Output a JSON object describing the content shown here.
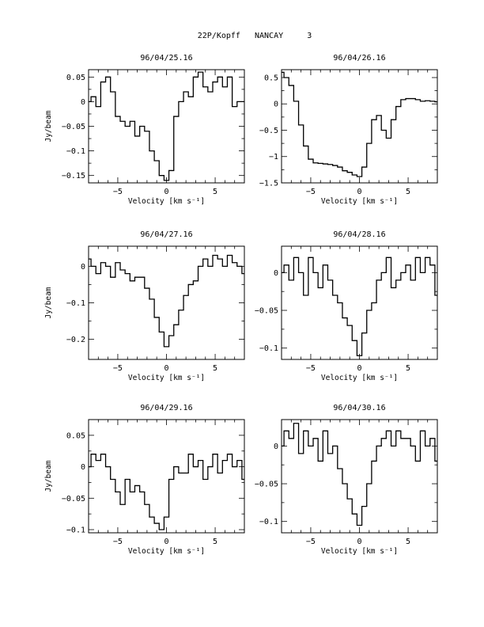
{
  "header": {
    "title": "22P/Kopff   NANCAY     3"
  },
  "chart_data": [
    {
      "type": "line",
      "title": "96/04/25.16",
      "xlabel": "Velocity [km s⁻¹]",
      "ylabel": "Jy/beam",
      "xlim": [
        -8,
        8
      ],
      "ylim": [
        -0.165,
        0.065
      ],
      "xticks": [
        -5,
        0,
        5
      ],
      "yticks": [
        0.05,
        0,
        -0.05,
        -0.1,
        -0.15
      ],
      "ytick_labels": [
        "0.05",
        "0",
        "−0.05",
        "−0.1",
        "−0.15"
      ],
      "x": [
        -8,
        -7.5,
        -7,
        -6.5,
        -6,
        -5.5,
        -5,
        -4.5,
        -4,
        -3.5,
        -3,
        -2.5,
        -2,
        -1.5,
        -1,
        -0.5,
        0,
        0.5,
        1,
        1.5,
        2,
        2.5,
        3,
        3.5,
        4,
        4.5,
        5,
        5.5,
        6,
        6.5,
        7,
        7.5,
        8
      ],
      "y": [
        0.0,
        0.01,
        -0.01,
        0.04,
        0.05,
        0.02,
        -0.03,
        -0.04,
        -0.05,
        -0.04,
        -0.07,
        -0.05,
        -0.06,
        -0.1,
        -0.12,
        -0.15,
        -0.16,
        -0.14,
        -0.03,
        0.0,
        0.02,
        0.01,
        0.05,
        0.06,
        0.03,
        0.02,
        0.04,
        0.05,
        0.03,
        0.05,
        -0.01,
        0.0,
        0.0
      ]
    },
    {
      "type": "line",
      "title": "96/04/26.16",
      "xlabel": "Velocity [km s⁻¹]",
      "ylabel": "",
      "xlim": [
        -8,
        8
      ],
      "ylim": [
        -1.5,
        0.65
      ],
      "xticks": [
        -5,
        0,
        5
      ],
      "yticks": [
        0.5,
        0,
        -0.5,
        -1,
        -1.5
      ],
      "ytick_labels": [
        "0.5",
        "0",
        "−0.5",
        "−1",
        "−1.5"
      ],
      "x": [
        -8,
        -7.5,
        -7,
        -6.5,
        -6,
        -5.5,
        -5,
        -4.5,
        -4,
        -3.5,
        -3,
        -2.5,
        -2,
        -1.5,
        -1,
        -0.5,
        0,
        0.5,
        1,
        1.5,
        2,
        2.5,
        3,
        3.5,
        4,
        4.5,
        5,
        5.5,
        6,
        6.5,
        7,
        7.5,
        8
      ],
      "y": [
        0.6,
        0.5,
        0.35,
        0.05,
        -0.4,
        -0.8,
        -1.05,
        -1.12,
        -1.13,
        -1.14,
        -1.15,
        -1.17,
        -1.2,
        -1.27,
        -1.3,
        -1.35,
        -1.38,
        -1.2,
        -0.75,
        -0.3,
        -0.22,
        -0.5,
        -0.65,
        -0.3,
        -0.05,
        0.08,
        0.1,
        0.1,
        0.08,
        0.05,
        0.06,
        0.05,
        0.04
      ]
    },
    {
      "type": "line",
      "title": "96/04/27.16",
      "xlabel": "Velocity [km s⁻¹]",
      "ylabel": "Jy/beam",
      "xlim": [
        -8,
        8
      ],
      "ylim": [
        -0.255,
        0.055
      ],
      "xticks": [
        -5,
        0,
        5
      ],
      "yticks": [
        0,
        -0.1,
        -0.2
      ],
      "ytick_labels": [
        "0",
        "−0.1",
        "−0.2"
      ],
      "x": [
        -8,
        -7.5,
        -7,
        -6.5,
        -6,
        -5.5,
        -5,
        -4.5,
        -4,
        -3.5,
        -3,
        -2.5,
        -2,
        -1.5,
        -1,
        -0.5,
        0,
        0.5,
        1,
        1.5,
        2,
        2.5,
        3,
        3.5,
        4,
        4.5,
        5,
        5.5,
        6,
        6.5,
        7,
        7.5,
        8
      ],
      "y": [
        0.02,
        0.0,
        -0.02,
        0.01,
        0.0,
        -0.03,
        0.01,
        -0.01,
        -0.02,
        -0.04,
        -0.03,
        -0.03,
        -0.06,
        -0.09,
        -0.14,
        -0.18,
        -0.22,
        -0.19,
        -0.16,
        -0.12,
        -0.08,
        -0.05,
        -0.04,
        0.0,
        0.02,
        0.0,
        0.03,
        0.02,
        0.0,
        0.03,
        0.01,
        0.0,
        -0.02
      ]
    },
    {
      "type": "line",
      "title": "96/04/28.16",
      "xlabel": "Velocity [km s⁻¹]",
      "ylabel": "",
      "xlim": [
        -8,
        8
      ],
      "ylim": [
        -0.115,
        0.035
      ],
      "xticks": [
        -5,
        0,
        5
      ],
      "yticks": [
        0,
        -0.05,
        -0.1
      ],
      "ytick_labels": [
        "0",
        "−0.05",
        "−0.1"
      ],
      "x": [
        -8,
        -7.5,
        -7,
        -6.5,
        -6,
        -5.5,
        -5,
        -4.5,
        -4,
        -3.5,
        -3,
        -2.5,
        -2,
        -1.5,
        -1,
        -0.5,
        0,
        0.5,
        1,
        1.5,
        2,
        2.5,
        3,
        3.5,
        4,
        4.5,
        5,
        5.5,
        6,
        6.5,
        7,
        7.5,
        8
      ],
      "y": [
        0.0,
        0.01,
        -0.01,
        0.02,
        0.0,
        -0.03,
        0.02,
        0.0,
        -0.02,
        0.01,
        -0.01,
        -0.03,
        -0.04,
        -0.06,
        -0.07,
        -0.09,
        -0.11,
        -0.08,
        -0.05,
        -0.04,
        -0.01,
        0.0,
        0.02,
        -0.02,
        -0.01,
        0.0,
        0.01,
        -0.01,
        0.02,
        0.0,
        0.02,
        0.01,
        -0.03
      ]
    },
    {
      "type": "line",
      "title": "96/04/29.16",
      "xlabel": "Velocity [km s⁻¹]",
      "ylabel": "Jy/beam",
      "xlim": [
        -8,
        8
      ],
      "ylim": [
        -0.105,
        0.075
      ],
      "xticks": [
        -5,
        0,
        5
      ],
      "yticks": [
        0.05,
        0,
        -0.05,
        -0.1
      ],
      "ytick_labels": [
        "0.05",
        "0",
        "−0.05",
        "−0.1"
      ],
      "x": [
        -8,
        -7.5,
        -7,
        -6.5,
        -6,
        -5.5,
        -5,
        -4.5,
        -4,
        -3.5,
        -3,
        -2.5,
        -2,
        -1.5,
        -1,
        -0.5,
        0,
        0.5,
        1,
        1.5,
        2,
        2.5,
        3,
        3.5,
        4,
        4.5,
        5,
        5.5,
        6,
        6.5,
        7,
        7.5,
        8
      ],
      "y": [
        0.0,
        0.02,
        0.01,
        0.02,
        0.0,
        -0.02,
        -0.04,
        -0.06,
        -0.02,
        -0.04,
        -0.03,
        -0.04,
        -0.06,
        -0.08,
        -0.09,
        -0.1,
        -0.08,
        -0.02,
        0.0,
        -0.01,
        -0.01,
        0.02,
        0.0,
        0.01,
        -0.02,
        0.0,
        0.02,
        -0.01,
        0.01,
        0.02,
        0.0,
        0.01,
        -0.02
      ]
    },
    {
      "type": "line",
      "title": "96/04/30.16",
      "xlabel": "Velocity [km s⁻¹]",
      "ylabel": "",
      "xlim": [
        -8,
        8
      ],
      "ylim": [
        -0.115,
        0.035
      ],
      "xticks": [
        -5,
        0,
        5
      ],
      "yticks": [
        0,
        -0.05,
        -0.1
      ],
      "ytick_labels": [
        "0",
        "−0.05",
        "−0.1"
      ],
      "x": [
        -8,
        -7.5,
        -7,
        -6.5,
        -6,
        -5.5,
        -5,
        -4.5,
        -4,
        -3.5,
        -3,
        -2.5,
        -2,
        -1.5,
        -1,
        -0.5,
        0,
        0.5,
        1,
        1.5,
        2,
        2.5,
        3,
        3.5,
        4,
        4.5,
        5,
        5.5,
        6,
        6.5,
        7,
        7.5,
        8
      ],
      "y": [
        0.0,
        0.02,
        0.01,
        0.03,
        -0.01,
        0.02,
        0.0,
        0.01,
        -0.02,
        0.02,
        -0.01,
        0.0,
        -0.03,
        -0.05,
        -0.07,
        -0.09,
        -0.105,
        -0.08,
        -0.05,
        -0.02,
        0.0,
        0.01,
        0.02,
        0.0,
        0.02,
        0.01,
        0.01,
        0.0,
        -0.02,
        0.02,
        0.0,
        0.01,
        -0.02
      ]
    }
  ]
}
